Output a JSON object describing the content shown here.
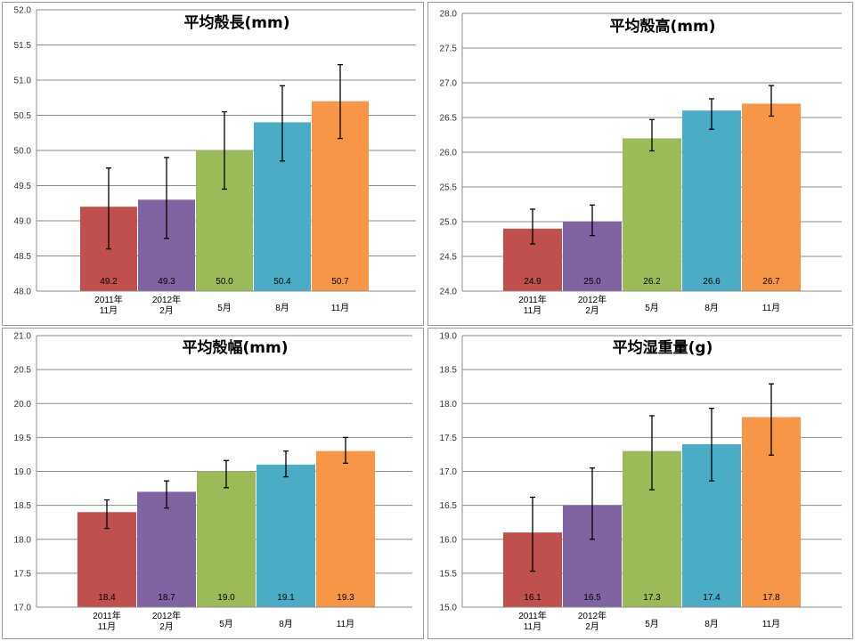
{
  "chart_data": [
    {
      "type": "bar",
      "title": "平均殻長(mm)",
      "categories": [
        [
          "2011年",
          "11月"
        ],
        [
          "2012年",
          "2月"
        ],
        [
          "5月"
        ],
        [
          "8月"
        ],
        [
          "11月"
        ]
      ],
      "values": [
        49.2,
        49.3,
        50.0,
        50.4,
        50.7
      ],
      "data_labels": [
        "49.2",
        "49.3",
        "50.0",
        "50.4",
        "50.7"
      ],
      "error_low": [
        48.6,
        48.75,
        49.45,
        49.85,
        50.17
      ],
      "error_high": [
        49.75,
        49.9,
        50.55,
        50.92,
        51.22
      ],
      "ylim": [
        48.0,
        52.0
      ],
      "yticks": [
        "48.0",
        "48.5",
        "49.0",
        "49.5",
        "50.0",
        "50.5",
        "51.0",
        "51.5",
        "52.0"
      ],
      "grid": true
    },
    {
      "type": "bar",
      "title": "平均殻高(mm)",
      "categories": [
        [
          "2011年",
          "11月"
        ],
        [
          "2012年",
          "2月"
        ],
        [
          "5月"
        ],
        [
          "8月"
        ],
        [
          "11月"
        ]
      ],
      "values": [
        24.9,
        25.0,
        26.2,
        26.6,
        26.7
      ],
      "data_labels": [
        "24.9",
        "25.0",
        "26.2",
        "26.6",
        "26.7"
      ],
      "error_low": [
        24.68,
        24.8,
        26.02,
        26.33,
        26.52
      ],
      "error_high": [
        25.18,
        25.24,
        26.47,
        26.77,
        26.96
      ],
      "ylim": [
        24.0,
        28.0
      ],
      "yticks": [
        "24.0",
        "24.5",
        "25.0",
        "25.5",
        "26.0",
        "26.5",
        "27.0",
        "27.5",
        "28.0"
      ],
      "grid": true
    },
    {
      "type": "bar",
      "title": "平均殻幅(mm)",
      "categories": [
        [
          "2011年",
          "11月"
        ],
        [
          "2012年",
          "2月"
        ],
        [
          "5月"
        ],
        [
          "8月"
        ],
        [
          "11月"
        ]
      ],
      "values": [
        18.4,
        18.7,
        19.0,
        19.1,
        19.3
      ],
      "data_labels": [
        "18.4",
        "18.7",
        "19.0",
        "19.1",
        "19.3"
      ],
      "error_low": [
        18.16,
        18.46,
        18.76,
        18.92,
        19.12
      ],
      "error_high": [
        18.58,
        18.86,
        19.16,
        19.3,
        19.5
      ],
      "ylim": [
        17.0,
        21.0
      ],
      "yticks": [
        "17.0",
        "17.5",
        "18.0",
        "18.5",
        "19.0",
        "19.5",
        "20.0",
        "20.5",
        "21.0"
      ],
      "grid": true
    },
    {
      "type": "bar",
      "title": "平均湿重量(g)",
      "categories": [
        [
          "2011年",
          "11月"
        ],
        [
          "2012年",
          "2月"
        ],
        [
          "5月"
        ],
        [
          "8月"
        ],
        [
          "11月"
        ]
      ],
      "values": [
        16.1,
        16.5,
        17.3,
        17.4,
        17.8
      ],
      "data_labels": [
        "16.1",
        "16.5",
        "17.3",
        "17.4",
        "17.8"
      ],
      "error_low": [
        15.53,
        16.0,
        16.73,
        16.86,
        17.24
      ],
      "error_high": [
        16.62,
        17.05,
        17.82,
        17.93,
        18.29
      ],
      "ylim": [
        15.0,
        19.0
      ],
      "yticks": [
        "15.0",
        "15.5",
        "16.0",
        "16.5",
        "17.0",
        "17.5",
        "18.0",
        "18.5",
        "19.0"
      ],
      "grid": true
    }
  ],
  "colors": [
    "#c0504d",
    "#8064a2",
    "#9bbb59",
    "#4bacc6",
    "#f79646"
  ]
}
